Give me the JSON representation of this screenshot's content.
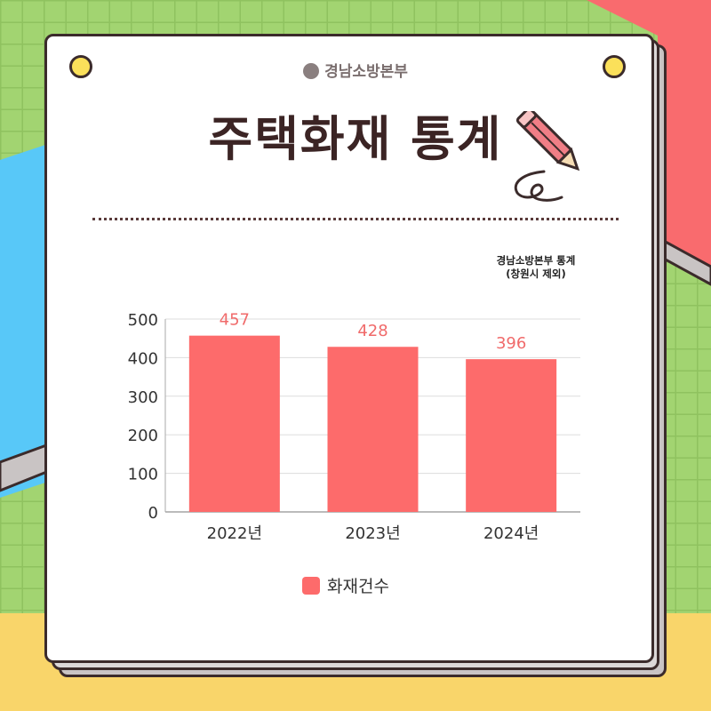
{
  "header": {
    "organization": "경남소방본부",
    "title": "주택화재 통계"
  },
  "note": {
    "line1": "경남소방본부  통계",
    "line2": "(창원시 제외)"
  },
  "colors": {
    "bar": "#fd6b6b",
    "label": "#f06a6a",
    "title": "#3b2424",
    "background_green": "#a2d471",
    "background_blue": "#58c8f8",
    "background_pink": "#f96b6e",
    "background_yellow": "#f9d56a"
  },
  "icons": [
    "fire-station-logo-icon",
    "pencil-icon",
    "pin-icon"
  ],
  "chart_data": {
    "type": "bar",
    "categories": [
      "2022년",
      "2023년",
      "2024년"
    ],
    "series": [
      {
        "name": "화재건수",
        "values": [
          457,
          428,
          396
        ]
      }
    ],
    "data_labels": [
      "457",
      "428",
      "396"
    ],
    "yticks": [
      "0",
      "100",
      "200",
      "300",
      "400",
      "500"
    ],
    "ylim": [
      0,
      500
    ],
    "grid": true,
    "legend": "bottom",
    "title": "",
    "xlabel": "",
    "ylabel": ""
  }
}
